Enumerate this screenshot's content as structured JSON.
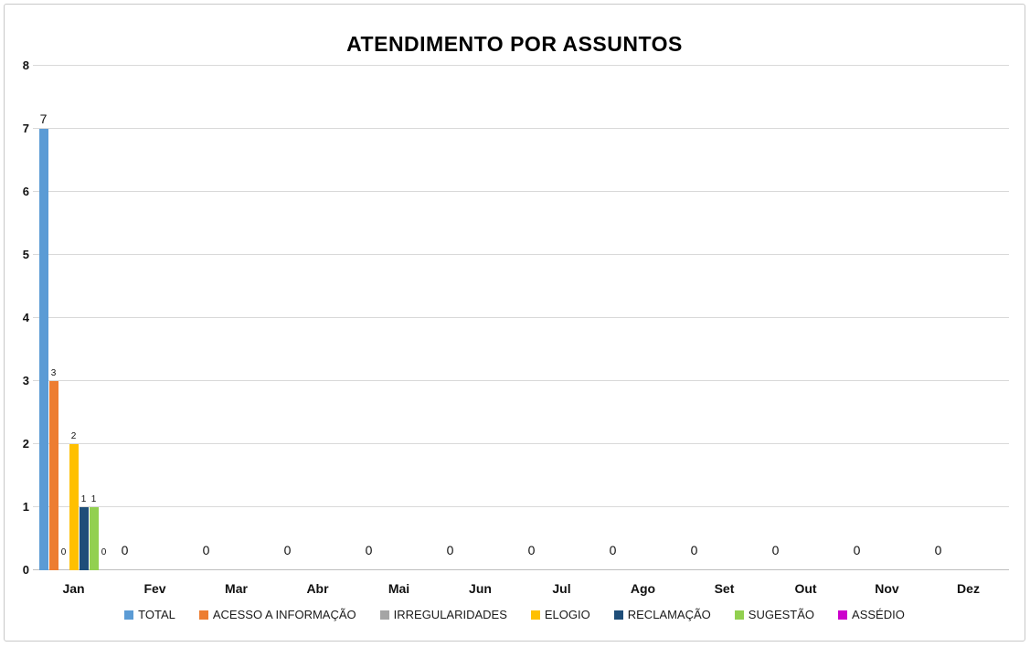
{
  "chart_data": {
    "type": "bar",
    "title": "ATENDIMENTO POR ASSUNTOS",
    "categories": [
      "Jan",
      "Fev",
      "Mar",
      "Abr",
      "Mai",
      "Jun",
      "Jul",
      "Ago",
      "Set",
      "Out",
      "Nov",
      "Dez"
    ],
    "series": [
      {
        "name": "TOTAL",
        "color": "#5B9BD5",
        "values": [
          7,
          0,
          0,
          0,
          0,
          0,
          0,
          0,
          0,
          0,
          0,
          0
        ]
      },
      {
        "name": "ACESSO A INFORMAÇÃO",
        "color": "#ED7D31",
        "values": [
          3,
          0,
          0,
          0,
          0,
          0,
          0,
          0,
          0,
          0,
          0,
          0
        ]
      },
      {
        "name": "IRREGULARIDADES",
        "color": "#A5A5A5",
        "values": [
          0,
          0,
          0,
          0,
          0,
          0,
          0,
          0,
          0,
          0,
          0,
          0
        ]
      },
      {
        "name": "ELOGIO",
        "color": "#FFC000",
        "values": [
          2,
          0,
          0,
          0,
          0,
          0,
          0,
          0,
          0,
          0,
          0,
          0
        ]
      },
      {
        "name": "RECLAMAÇÃO",
        "color": "#1F4E79",
        "values": [
          1,
          0,
          0,
          0,
          0,
          0,
          0,
          0,
          0,
          0,
          0,
          0
        ]
      },
      {
        "name": "SUGESTÃO",
        "color": "#92D050",
        "values": [
          1,
          0,
          0,
          0,
          0,
          0,
          0,
          0,
          0,
          0,
          0,
          0
        ]
      },
      {
        "name": "ASSÉDIO",
        "color": "#CC00CC",
        "values": [
          0,
          0,
          0,
          0,
          0,
          0,
          0,
          0,
          0,
          0,
          0,
          0
        ]
      }
    ],
    "xlabel": "",
    "ylabel": "",
    "ylim": [
      0,
      8
    ],
    "y_ticks": [
      0,
      1,
      2,
      3,
      4,
      5,
      6,
      7,
      8
    ],
    "grid": true,
    "legend_position": "bottom",
    "data_labels": {
      "first_category": "all series labeled",
      "other_categories": "only TOTAL labeled with 0"
    },
    "colors": {
      "gridline": "#D9D9D9",
      "axis_line": "#BFBFBF",
      "label_text": "#111111"
    }
  }
}
